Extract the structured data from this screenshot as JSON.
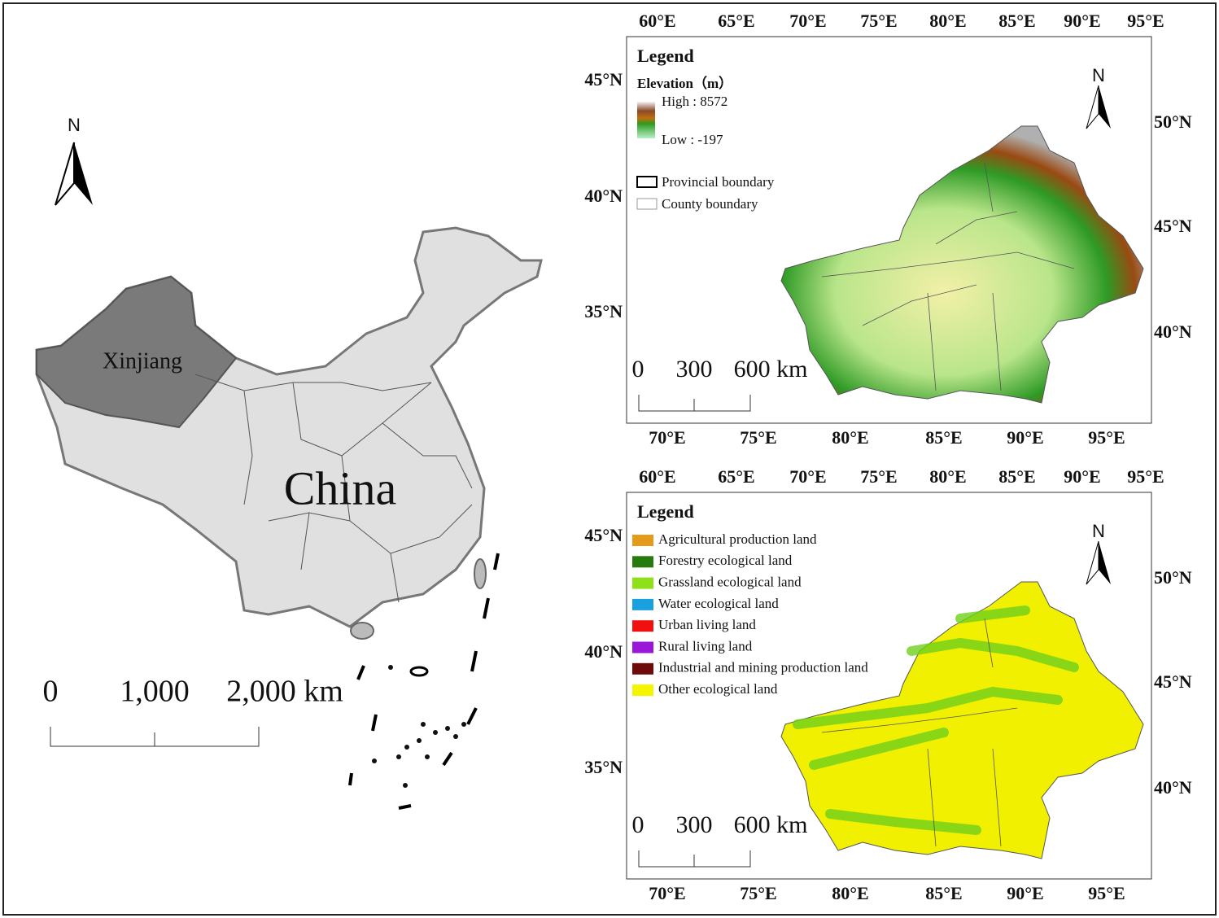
{
  "china_map": {
    "north": "N",
    "region_label": "Xinjiang",
    "country_label": "China",
    "scale_labels": [
      "0",
      "1,000",
      "2,000 km"
    ]
  },
  "elevation_map": {
    "top_lon_labels": [
      "60°E",
      "65°E",
      "70°E",
      "75°E",
      "80°E",
      "85°E",
      "90°E",
      "95°E"
    ],
    "bottom_lon_labels": [
      "70°E",
      "75°E",
      "80°E",
      "85°E",
      "90°E",
      "95°E"
    ],
    "left_lat_labels": [
      "45°N",
      "40°N",
      "35°N"
    ],
    "right_lat_labels": [
      "50°N",
      "45°N",
      "40°N"
    ],
    "north": "N",
    "legend": {
      "title": "Legend",
      "subtitle": "Elevation（m）",
      "high": "High : 8572",
      "low": "Low : -197",
      "items": [
        "Provincial boundary",
        "County boundary"
      ]
    },
    "scale_labels": [
      "0",
      "300",
      "600 km"
    ]
  },
  "land_use_map": {
    "top_lon_labels": [
      "60°E",
      "65°E",
      "70°E",
      "75°E",
      "80°E",
      "85°E",
      "90°E",
      "95°E"
    ],
    "bottom_lon_labels": [
      "70°E",
      "75°E",
      "80°E",
      "85°E",
      "90°E",
      "95°E"
    ],
    "left_lat_labels": [
      "45°N",
      "40°N",
      "35°N"
    ],
    "right_lat_labels": [
      "50°N",
      "45°N",
      "40°N"
    ],
    "north": "N",
    "legend": {
      "title": "Legend",
      "items": [
        {
          "name": "Agricultural production land",
          "color": "#e69a1c"
        },
        {
          "name": "Forestry ecological land",
          "color": "#267a0e"
        },
        {
          "name": "Grassland ecological land",
          "color": "#8fe019"
        },
        {
          "name": "Water ecological land",
          "color": "#1aa0de"
        },
        {
          "name": "Urban living land",
          "color": "#f01010"
        },
        {
          "name": "Rural living land",
          "color": "#9a16d8"
        },
        {
          "name": "Industrial and mining production land",
          "color": "#6e0a0a"
        },
        {
          "name": "Other ecological land",
          "color": "#f5f500"
        }
      ]
    },
    "scale_labels": [
      "0",
      "300",
      "600 km"
    ]
  }
}
